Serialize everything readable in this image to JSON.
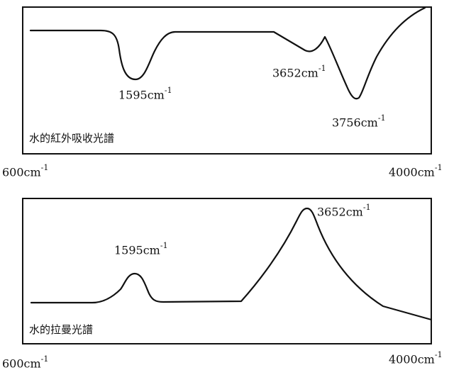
{
  "spectra": [
    {
      "id": "ir",
      "title": "水的紅外吸收光譜",
      "axis": {
        "left": "600cm",
        "right": "4000cm",
        "unit_sup": "-1"
      },
      "peaks": [
        {
          "value": "1595cm",
          "sup": "-1"
        },
        {
          "value": "3652cm",
          "sup": "-1"
        },
        {
          "value": "3756cm",
          "sup": "-1"
        }
      ]
    },
    {
      "id": "raman",
      "title": "水的拉曼光譜",
      "axis": {
        "left": "600cm",
        "right": "4000cm",
        "unit_sup": "-1"
      },
      "peaks": [
        {
          "value": "1595cm",
          "sup": "-1"
        },
        {
          "value": "3652cm",
          "sup": "-1"
        }
      ]
    }
  ]
}
